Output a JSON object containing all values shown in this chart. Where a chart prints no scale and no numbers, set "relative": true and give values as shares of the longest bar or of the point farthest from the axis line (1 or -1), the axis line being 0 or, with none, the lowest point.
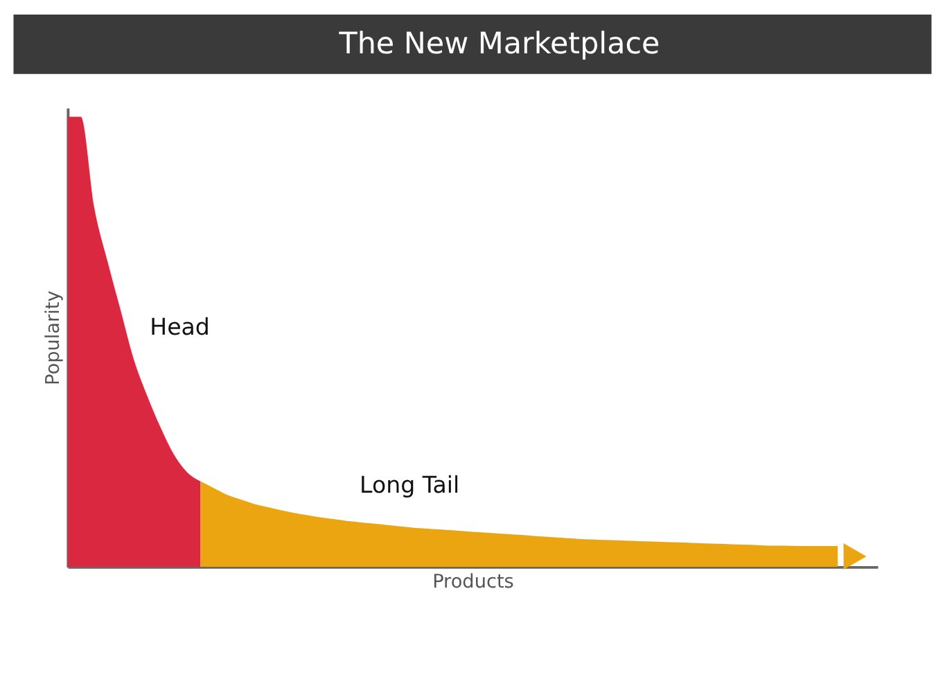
{
  "chart_data": {
    "type": "area",
    "title": "The New Marketplace",
    "xlabel": "Products",
    "ylabel": "Popularity",
    "relative": true,
    "legend": false,
    "grid": false,
    "categories": [
      null,
      null,
      null,
      null,
      null,
      null,
      null,
      null,
      null,
      null,
      null,
      null,
      null,
      null,
      null,
      null,
      null,
      null,
      null,
      null,
      null,
      null,
      null,
      null,
      null,
      null,
      null,
      null,
      null,
      null,
      null,
      null,
      null,
      null,
      null,
      null,
      null,
      null,
      null,
      null,
      null,
      null,
      null,
      null,
      null,
      null,
      null,
      null,
      null,
      null,
      null,
      null,
      null,
      null,
      null,
      null,
      null,
      null,
      null
    ],
    "series": [
      {
        "name": "Head",
        "color": "#d9283f",
        "values": [
          1,
          1,
          0.8,
          0.68,
          0.57,
          0.46,
          0.38,
          0.31,
          0.25,
          0.21,
          0.19,
          null,
          null,
          null,
          null,
          null,
          null,
          null,
          null,
          null,
          null,
          null,
          null,
          null,
          null,
          null,
          null,
          null,
          null,
          null,
          null,
          null,
          null,
          null,
          null,
          null,
          null,
          null,
          null,
          null,
          null,
          null,
          null,
          null,
          null,
          null,
          null,
          null,
          null,
          null,
          null,
          null,
          null,
          null,
          null,
          null,
          null,
          null,
          null
        ]
      },
      {
        "name": "Long Tail",
        "color": "#eaa510",
        "values": [
          null,
          null,
          null,
          null,
          null,
          null,
          null,
          null,
          null,
          null,
          0.19,
          0.175,
          0.16,
          0.15,
          0.14,
          0.133,
          0.126,
          0.12,
          0.115,
          0.11,
          0.106,
          0.102,
          0.099,
          0.096,
          0.093,
          0.09,
          0.087,
          0.085,
          0.083,
          0.081,
          0.079,
          0.077,
          0.075,
          0.073,
          0.071,
          0.069,
          0.067,
          0.065,
          0.063,
          0.061,
          0.06,
          0.059,
          0.058,
          0.057,
          0.056,
          0.055,
          0.054,
          0.053,
          0.052,
          0.051,
          0.05,
          0.049,
          0.048,
          0.047,
          0.047,
          0.046,
          0.046,
          0.046,
          0.046
        ]
      }
    ]
  }
}
